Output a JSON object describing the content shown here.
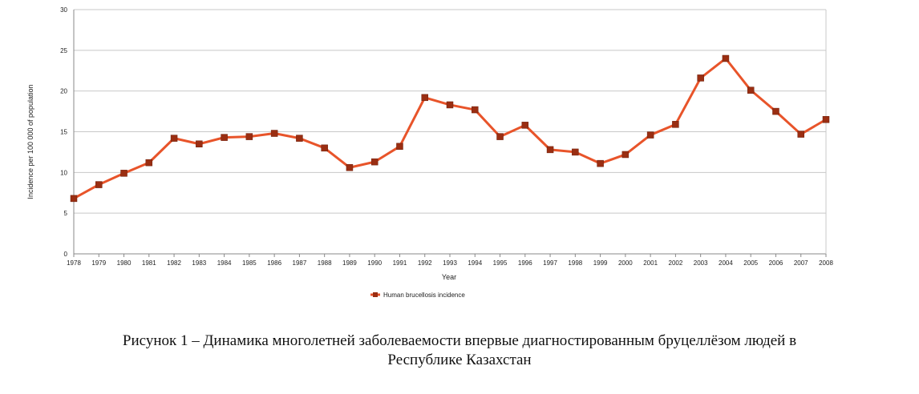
{
  "chart_data": {
    "type": "line",
    "title": "",
    "xlabel": "Year",
    "ylabel": "Incidence per 100 000 of population",
    "ylim": [
      0,
      30
    ],
    "yticks": [
      0,
      5,
      10,
      15,
      20,
      25,
      30
    ],
    "grid": true,
    "legend_position": "bottom",
    "line_color": "#e8542a",
    "marker_color": "#9a2e12",
    "categories": [
      "1978",
      "1979",
      "1980",
      "1981",
      "1982",
      "1983",
      "1984",
      "1985",
      "1986",
      "1987",
      "1988",
      "1989",
      "1990",
      "1991",
      "1992",
      "1993",
      "1994",
      "1995",
      "1996",
      "1997",
      "1998",
      "1999",
      "2000",
      "2001",
      "2002",
      "2003",
      "2004",
      "2005",
      "2006",
      "2007",
      "2008"
    ],
    "series": [
      {
        "name": "Human brucellosis incidence",
        "values": [
          6.8,
          8.5,
          9.9,
          11.2,
          14.2,
          13.5,
          14.3,
          14.4,
          14.8,
          14.2,
          13.0,
          10.6,
          11.3,
          13.2,
          19.2,
          18.3,
          17.7,
          14.4,
          15.8,
          12.8,
          12.5,
          11.1,
          12.2,
          14.6,
          15.9,
          21.6,
          24.0,
          20.1,
          17.5,
          14.7,
          16.5
        ]
      }
    ]
  },
  "caption": {
    "line1": "Рисунок 1 – Динамика многолетней заболеваемости впервые диагностированным бруцеллёзом людей в",
    "line2": "Республике Казахстан"
  }
}
